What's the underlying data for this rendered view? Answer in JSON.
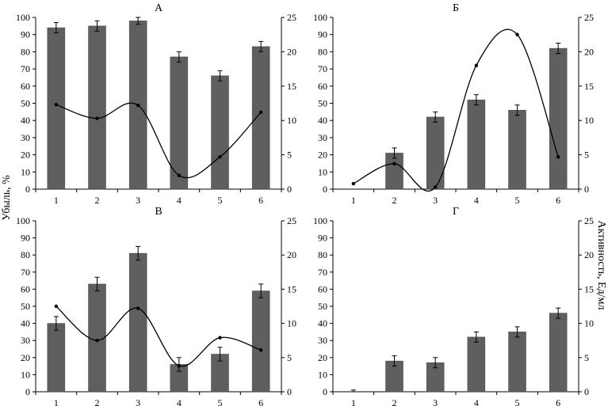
{
  "y_axis_left_label": "Убыль, %",
  "y_axis_right_label": "Активность, Ед/мл",
  "chart_data": [
    {
      "type": "bar+line",
      "title": "А",
      "categories": [
        "1",
        "2",
        "3",
        "4",
        "5",
        "6"
      ],
      "ylim_left": [
        0,
        100
      ],
      "yticks_left": [
        0,
        10,
        20,
        30,
        40,
        50,
        60,
        70,
        80,
        90,
        100
      ],
      "ylim_right": [
        0,
        25
      ],
      "yticks_right": [
        0,
        5,
        10,
        15,
        20,
        25
      ],
      "bars": [
        94,
        95,
        98,
        77,
        66,
        83
      ],
      "bar_errors": [
        3,
        3,
        2,
        3,
        3,
        3
      ],
      "line": [
        12.3,
        10.3,
        12.2,
        2.0,
        4.7,
        11.2
      ]
    },
    {
      "type": "bar+line",
      "title": "Б",
      "categories": [
        "1",
        "2",
        "3",
        "4",
        "5",
        "6"
      ],
      "ylim_left": [
        0,
        100
      ],
      "yticks_left": [
        0,
        10,
        20,
        30,
        40,
        50,
        60,
        70,
        80,
        90,
        100
      ],
      "ylim_right": [
        0,
        25
      ],
      "yticks_right": [
        0,
        5,
        10,
        15,
        20,
        25
      ],
      "bars": [
        0,
        21,
        42,
        52,
        46,
        82
      ],
      "bar_errors": [
        0,
        3,
        3,
        3,
        3,
        3
      ],
      "line": [
        0.8,
        3.7,
        0.3,
        18.0,
        22.5,
        4.7
      ]
    },
    {
      "type": "bar+line",
      "title": "В",
      "categories": [
        "1",
        "2",
        "3",
        "4",
        "5",
        "6"
      ],
      "ylim_left": [
        0,
        100
      ],
      "yticks_left": [
        0,
        10,
        20,
        30,
        40,
        50,
        60,
        70,
        80,
        90,
        100
      ],
      "ylim_right": [
        0,
        25
      ],
      "yticks_right": [
        0,
        5,
        10,
        15,
        20,
        25
      ],
      "bars": [
        40,
        63,
        81,
        16,
        22,
        59
      ],
      "bar_errors": [
        4,
        4,
        4,
        4,
        4,
        4
      ],
      "line": [
        12.5,
        7.5,
        12.2,
        3.8,
        7.9,
        6.1
      ]
    },
    {
      "type": "bar",
      "title": "Г",
      "categories": [
        "1",
        "2",
        "3",
        "4",
        "5",
        "6"
      ],
      "ylim_left": [
        0,
        100
      ],
      "yticks_left": [
        0,
        10,
        20,
        30,
        40,
        50,
        60,
        70,
        80,
        90,
        100
      ],
      "ylim_right": [
        0,
        25
      ],
      "yticks_right": [
        0,
        5,
        10,
        15,
        20,
        25
      ],
      "bars": [
        0,
        18,
        17,
        32,
        35,
        46
      ],
      "bar_errors": [
        1,
        3,
        3,
        3,
        3,
        3
      ],
      "line": null
    }
  ]
}
